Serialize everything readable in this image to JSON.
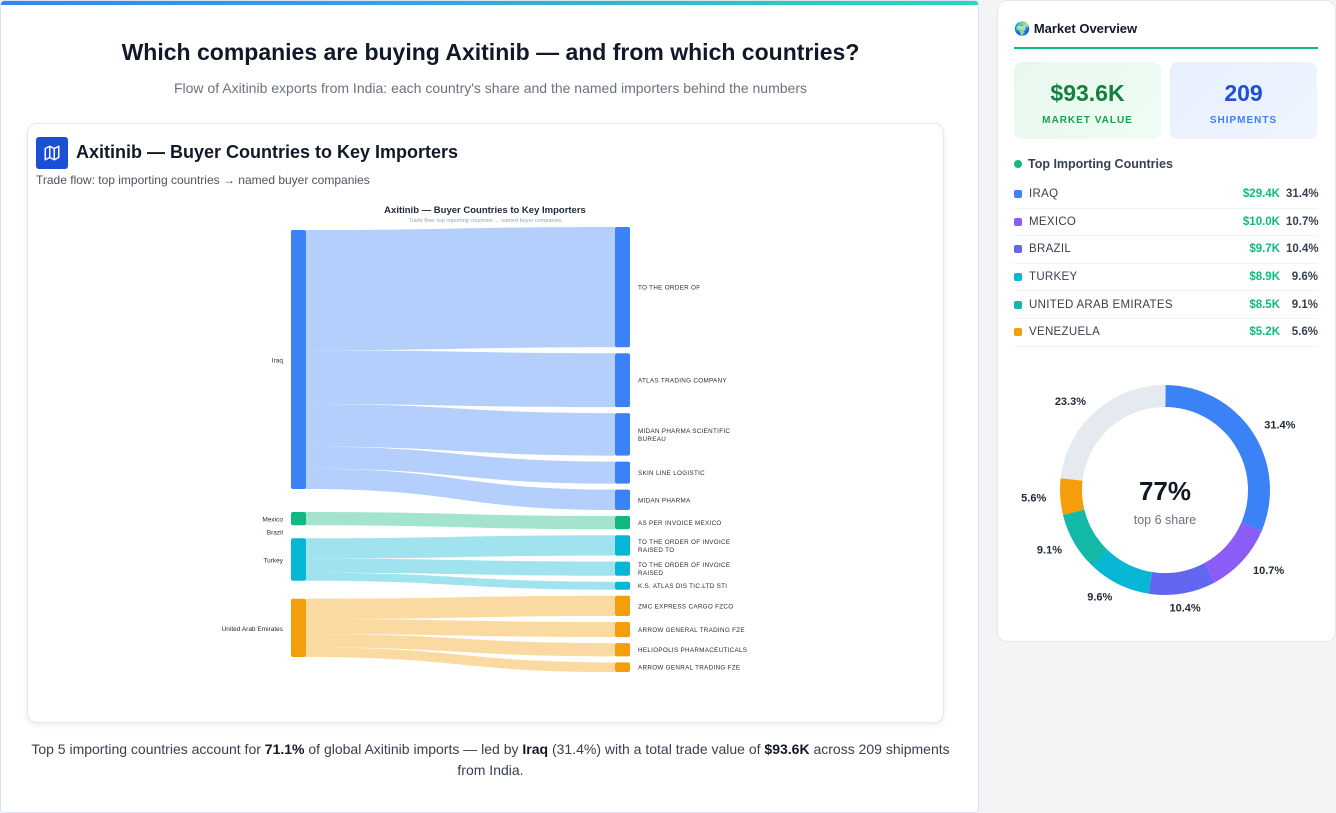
{
  "page": {
    "title": "Which companies are buying Axitinib — and from which countries?",
    "subtitle": "Flow of Axitinib exports from India: each country's share and the named importers behind the numbers"
  },
  "card": {
    "icon": "map-icon",
    "title": "Axitinib — Buyer Countries to Key Importers",
    "subtitle": "Trade flow: top importing countries → named buyer companies"
  },
  "footer": {
    "p1": "Top 5 importing countries account for ",
    "share": "71.1%",
    "p2": " of global Axitinib imports — led by ",
    "leader": "Iraq",
    "p3": " (31.4%) with a total trade value of ",
    "value": "$93.6K",
    "p4": " across 209 shipments from India."
  },
  "sidebar": {
    "icon": "globe-icon",
    "title": "Market Overview",
    "kpis": [
      {
        "value": "$93.6K",
        "label": "MARKET VALUE"
      },
      {
        "value": "209",
        "label": "SHIPMENTS"
      }
    ],
    "countries_title": "Top Importing Countries",
    "countries": [
      {
        "name": "IRAQ",
        "value": "$29.4K",
        "pct": "31.4%",
        "color": "#3b82f6"
      },
      {
        "name": "MEXICO",
        "value": "$10.0K",
        "pct": "10.7%",
        "color": "#8b5cf6"
      },
      {
        "name": "BRAZIL",
        "value": "$9.7K",
        "pct": "10.4%",
        "color": "#6366f1"
      },
      {
        "name": "TURKEY",
        "value": "$8.9K",
        "pct": "9.6%",
        "color": "#06b6d4"
      },
      {
        "name": "UNITED ARAB EMIRATES",
        "value": "$8.5K",
        "pct": "9.1%",
        "color": "#14b8a6"
      },
      {
        "name": "VENEZUELA",
        "value": "$5.2K",
        "pct": "5.6%",
        "color": "#f59e0b"
      }
    ]
  },
  "chart_data": [
    {
      "type": "sankey",
      "title": "Axitinib — Buyer Countries to Key Importers",
      "subtitle": "Trade flow: top importing countries → named buyer companies",
      "sources": [
        {
          "name": "Iraq",
          "color": "#3b82f6"
        },
        {
          "name": "Mexico",
          "color": "#10b981"
        },
        {
          "name": "Brazil",
          "color": "#8b5cf6"
        },
        {
          "name": "Turkey",
          "color": "#06b6d4"
        },
        {
          "name": "United Arab Emirates",
          "color": "#f59e0b"
        }
      ],
      "links": [
        {
          "source": "Iraq",
          "target": "TO THE ORDER OF",
          "value": 13.6
        },
        {
          "source": "Iraq",
          "target": "ATLAS TRADING COMPANY",
          "value": 6.1
        },
        {
          "source": "Iraq",
          "target": "MIDAN PHARMA SCIENTIFIC BUREAU",
          "value": 4.8
        },
        {
          "source": "Iraq",
          "target": "SKIN LINE LOGISTIC",
          "value": 2.5
        },
        {
          "source": "Iraq",
          "target": "MIDAN PHARMA",
          "value": 2.3
        },
        {
          "source": "Mexico",
          "target": "AS PER INVOICE MEXICO",
          "value": 1.5
        },
        {
          "source": "Turkey",
          "target": "TO THE ORDER OF INVOICE RAISED TO",
          "value": 2.3
        },
        {
          "source": "Turkey",
          "target": "TO THE ORDER OF INVOICE RAISED",
          "value": 1.6
        },
        {
          "source": "Turkey",
          "target": "K.S. ATLAS DIS TIC.LTD STI",
          "value": 0.9
        },
        {
          "source": "United Arab Emirates",
          "target": "ZMC EXPRESS CARGO FZCO",
          "value": 2.3
        },
        {
          "source": "United Arab Emirates",
          "target": "ARROW GENERAL TRADING FZE",
          "value": 1.7
        },
        {
          "source": "United Arab Emirates",
          "target": "HELIOPOLIS PHARMACEUTICALS",
          "value": 1.5
        },
        {
          "source": "United Arab Emirates",
          "target": "ARROW GENRAL TRADING FZE",
          "value": 1.1
        }
      ]
    },
    {
      "type": "donut",
      "center_value": "77%",
      "center_label": "top 6 share",
      "slices": [
        {
          "label": "31.4%",
          "value": 31.4,
          "color": "#3b82f6"
        },
        {
          "label": "10.7%",
          "value": 10.7,
          "color": "#8b5cf6"
        },
        {
          "label": "10.4%",
          "value": 10.4,
          "color": "#6366f1"
        },
        {
          "label": "9.6%",
          "value": 9.6,
          "color": "#06b6d4"
        },
        {
          "label": "9.1%",
          "value": 9.1,
          "color": "#14b8a6"
        },
        {
          "label": "5.6%",
          "value": 5.6,
          "color": "#f59e0b"
        },
        {
          "label": "23.3%",
          "value": 23.3,
          "color": "#e5e9f0"
        }
      ]
    }
  ]
}
